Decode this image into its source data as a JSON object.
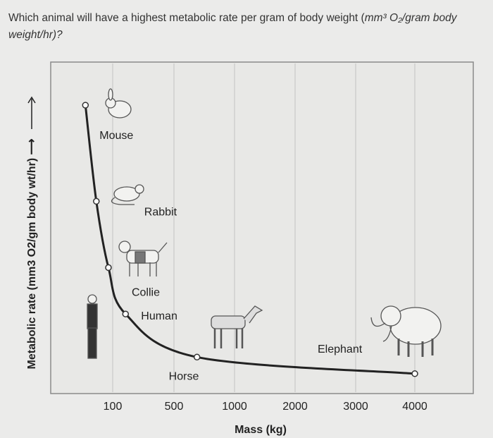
{
  "question": {
    "text": "Which animal will have a highest metabolic rate per gram of body weight (",
    "unit_italic": "mm³ O₂/gram body weight/hr)?"
  },
  "chart_data": {
    "type": "line",
    "title": "",
    "xlabel": "Mass (kg)",
    "ylabel": "Metabolic rate (mm3 O2/gm body wt/hr) ⟶",
    "x_ticks": [
      "100",
      "500",
      "1000",
      "2000",
      "3000",
      "4000"
    ],
    "x_scale": "non-linear (equally spaced ticks)",
    "y_ticks": [],
    "y_note": "values are relative fractions of the y-axis height (no y tick labels shown)",
    "grid": "vertical lines at x ticks",
    "line_color": "#222222",
    "points": [
      {
        "label": "Mouse",
        "x": 10,
        "y": 0.87
      },
      {
        "label": "Rabbit",
        "x": 46,
        "y": 0.58
      },
      {
        "label": "Collie",
        "x": 86,
        "y": 0.38
      },
      {
        "label": "Human",
        "x": 184,
        "y": 0.24
      },
      {
        "label": "Horse",
        "x": 690,
        "y": 0.11
      },
      {
        "label": "Elephant",
        "x": 4000,
        "y": 0.06
      }
    ]
  }
}
